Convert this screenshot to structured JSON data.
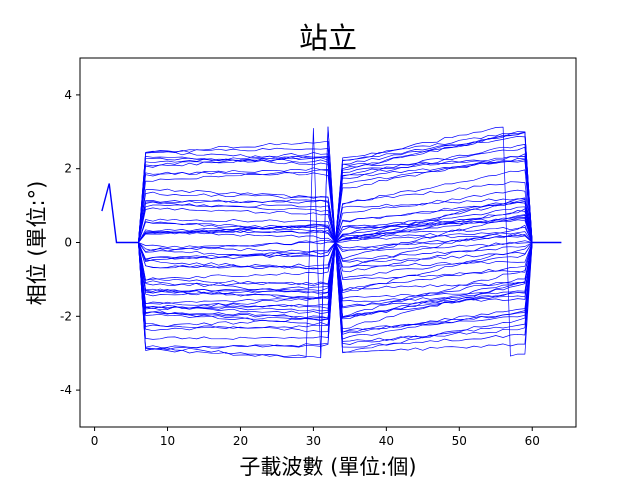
{
  "chart_data": {
    "type": "line",
    "title": "站立",
    "xlabel": "子載波數 (單位:個)",
    "ylabel": "相位 (單位:°)",
    "xlim": [
      -2,
      66
    ],
    "ylim": [
      -5,
      5
    ],
    "xticks": [
      0,
      10,
      20,
      30,
      40,
      50,
      60
    ],
    "yticks": [
      -4,
      -2,
      0,
      2,
      4
    ],
    "ytick_labels": [
      "-4",
      "-2",
      "0",
      "2",
      "4"
    ],
    "grid": false,
    "legend": false,
    "line_color": "#0000ff",
    "subcarrier_start": 1,
    "subcarrier_end": 64,
    "phase_wrap_limit": 3.14,
    "common_segments": [
      {
        "x": [
          1,
          2,
          3,
          6
        ],
        "y": [
          0.85,
          1.6,
          0.0,
          0.0
        ]
      },
      {
        "x": [
          60,
          61,
          64
        ],
        "y": [
          0.0,
          0.0,
          0.0
        ]
      }
    ],
    "left_block": {
      "x_start": 7,
      "x_end": 32
    },
    "right_block": {
      "x_start": 34,
      "x_end": 59
    },
    "series_count": 64,
    "series_profile": {
      "left_start_min": -2.9,
      "left_start_max": 2.95,
      "left_slope_min": -0.013,
      "left_slope_max": 0.013,
      "right_start_min": -3.0,
      "right_start_max": 2.3,
      "right_slope_min": 0.005,
      "right_slope_max": 0.05,
      "noise_amplitude": 0.04
    }
  }
}
